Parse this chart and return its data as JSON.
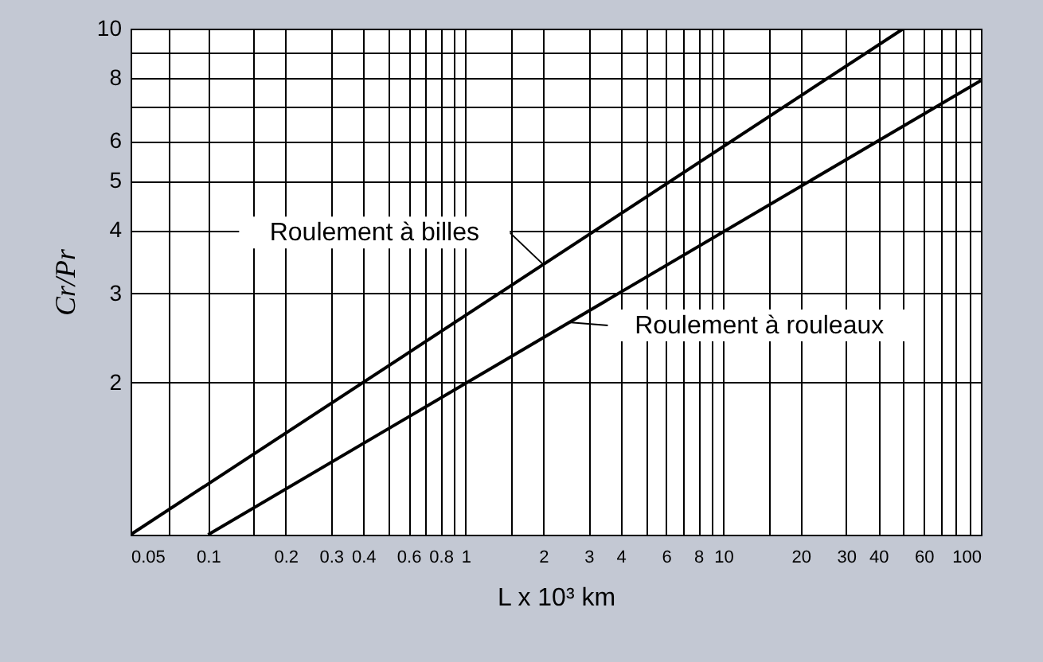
{
  "chart_data": {
    "type": "line",
    "xlabel": "L x 10³ km",
    "ylabel": "Cr/Pr",
    "log": "xy",
    "grid": true,
    "line_style": "solid",
    "xlim": [
      0.05,
      100
    ],
    "ylim": [
      1,
      10
    ],
    "xticks": [
      0.05,
      {
        "value": 0.07,
        "label": null
      },
      0.1,
      {
        "value": 0.15,
        "label": null
      },
      0.2,
      0.3,
      0.4,
      {
        "value": 0.5,
        "label": null
      },
      0.6,
      {
        "value": 0.7,
        "label": null
      },
      0.8,
      {
        "value": 0.9,
        "label": null
      },
      1,
      {
        "value": 1.5,
        "label": null
      },
      2,
      3,
      4,
      {
        "value": 5,
        "label": null
      },
      6,
      {
        "value": 7,
        "label": null
      },
      8,
      {
        "value": 9,
        "label": null
      },
      10,
      {
        "value": 15,
        "label": null
      },
      20,
      30,
      40,
      {
        "value": 50,
        "label": null
      },
      60,
      {
        "value": 70,
        "label": null
      },
      {
        "value": 80,
        "label": null
      },
      {
        "value": 90,
        "label": null
      },
      100
    ],
    "yticks": [
      {
        "value": 1,
        "label": null
      },
      2,
      3,
      4,
      5,
      6,
      {
        "value": 7,
        "label": null
      },
      8,
      {
        "value": 9,
        "label": null
      },
      10
    ],
    "series": [
      {
        "color": "#000000",
        "x": [
          0.05,
          50
        ],
        "values": [
          1,
          10
        ]
      },
      {
        "color": "#000000",
        "x": [
          0.1,
          100
        ],
        "values": [
          1,
          7.9
        ]
      }
    ],
    "annotations": [
      {
        "text": "Roulement à billes",
        "x": 2,
        "y": 3.42
      },
      {
        "text": "Roulement à rouleaux",
        "x": 2.5,
        "y": 2.63
      }
    ]
  }
}
